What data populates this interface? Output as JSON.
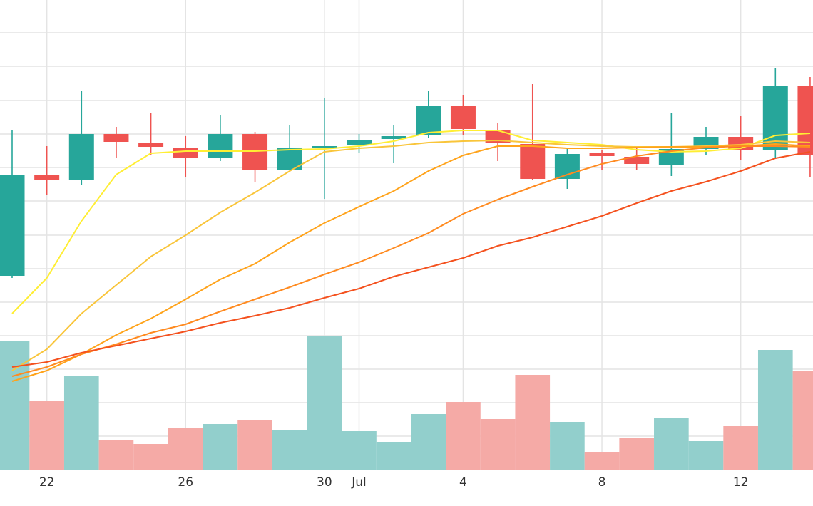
{
  "chart_data": {
    "type": "candlestick",
    "categories": [
      null,
      "22",
      null,
      null,
      null,
      "26",
      null,
      null,
      null,
      "30",
      "Jul",
      null,
      null,
      "4",
      null,
      null,
      null,
      "8",
      null,
      null,
      null,
      "12",
      null,
      null
    ],
    "open": [
      273,
      414,
      407,
      472,
      459,
      453,
      438,
      472,
      422,
      453,
      456,
      465,
      470,
      511,
      478,
      458,
      409,
      445,
      440,
      429,
      451,
      468,
      450,
      539
    ],
    "high": [
      477,
      455,
      532,
      482,
      502,
      469,
      498,
      475,
      484,
      522,
      472,
      484,
      532,
      526,
      488,
      542,
      452,
      450,
      452,
      501,
      482,
      497,
      565,
      552
    ],
    "low": [
      270,
      387,
      400,
      439,
      443,
      412,
      434,
      405,
      421,
      381,
      445,
      431,
      467,
      470,
      434,
      408,
      395,
      421,
      421,
      413,
      443,
      436,
      439,
      412
    ],
    "close": [
      414,
      408,
      472,
      461,
      454,
      438,
      472,
      421,
      452,
      455,
      463,
      469,
      511,
      479,
      459,
      409,
      444,
      441,
      430,
      451,
      468,
      450,
      539,
      443
    ],
    "volume": [
      182,
      97,
      133,
      42,
      37,
      60,
      65,
      70,
      57,
      188,
      55,
      40,
      79,
      96,
      72,
      134,
      68,
      26,
      45,
      74,
      41,
      62,
      169,
      140
    ],
    "up_color": "#26a69a",
    "down_color": "#ef5350",
    "volume_up_color": "#92cfcc",
    "volume_down_color": "#f5aaa6",
    "series": [
      {
        "color": "#ffee33",
        "values": [
          220,
          270,
          350,
          415,
          445,
          448,
          448,
          448,
          450,
          451,
          455,
          462,
          474,
          477,
          477,
          463,
          460,
          457,
          450,
          447,
          448,
          452,
          470,
          473
        ]
      },
      {
        "color": "#f9c53a",
        "values": [
          140,
          170,
          220,
          260,
          300,
          330,
          362,
          390,
          420,
          447,
          452,
          455,
          460,
          462,
          463,
          460,
          457,
          455,
          454,
          454,
          455,
          457,
          462,
          460
        ]
      },
      {
        "color": "#ffa31a",
        "values": [
          125,
          140,
          163,
          190,
          213,
          240,
          268,
          290,
          320,
          347,
          370,
          392,
          420,
          442,
          455,
          455,
          452,
          452,
          453,
          454,
          454,
          455,
          458,
          455
        ]
      },
      {
        "color": "#ff8a1f",
        "values": [
          132,
          145,
          163,
          177,
          193,
          205,
          223,
          240,
          257,
          275,
          292,
          312,
          333,
          360,
          380,
          398,
          415,
          430,
          441,
          448,
          453,
          455,
          455,
          454
        ]
      },
      {
        "color": "#f4511e",
        "values": [
          145,
          152,
          165,
          175,
          185,
          195,
          207,
          217,
          228,
          242,
          255,
          272,
          285,
          298,
          315,
          327,
          342,
          357,
          375,
          392,
          405,
          420,
          438,
          447
        ]
      }
    ],
    "ylim": [
      0,
      660
    ],
    "yticks": [
      48,
      95,
      142,
      189,
      236,
      283,
      330,
      378,
      425,
      472,
      519,
      567,
      614
    ],
    "grid": true
  }
}
